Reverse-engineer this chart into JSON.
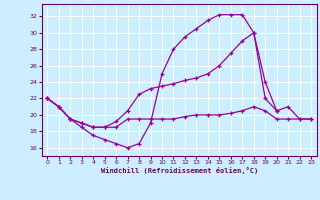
{
  "xlabel": "Windchill (Refroidissement éolien,°C)",
  "background_color": "#cceeff",
  "line_color": "#990099",
  "grid_color": "#ffffff",
  "axis_color": "#660066",
  "xlim": [
    -0.5,
    23.5
  ],
  "ylim": [
    15.0,
    33.5
  ],
  "xticks": [
    0,
    1,
    2,
    3,
    4,
    5,
    6,
    7,
    8,
    9,
    10,
    11,
    12,
    13,
    14,
    15,
    16,
    17,
    18,
    19,
    20,
    21,
    22,
    23
  ],
  "yticks": [
    16,
    18,
    20,
    22,
    24,
    26,
    28,
    30,
    32
  ],
  "curve1_x": [
    0,
    1,
    2,
    3,
    4,
    5,
    6,
    7,
    8,
    9,
    10,
    11,
    12,
    13,
    14,
    15,
    16,
    17,
    18,
    19,
    20
  ],
  "curve1_y": [
    22,
    21,
    19.5,
    18.5,
    17.5,
    17.0,
    16.5,
    16.0,
    16.5,
    19.0,
    25.0,
    28.0,
    29.5,
    30.5,
    31.5,
    32.2,
    32.2,
    32.2,
    30.0,
    22.0,
    20.5
  ],
  "curve2_x": [
    0,
    1,
    2,
    3,
    4,
    5,
    6,
    7,
    8,
    9,
    10,
    11,
    12,
    13,
    14,
    15,
    16,
    17,
    18,
    19,
    20,
    21,
    22,
    23
  ],
  "curve2_y": [
    22,
    21,
    19.5,
    19.0,
    18.5,
    18.5,
    19.2,
    20.5,
    22.5,
    23.2,
    23.5,
    23.8,
    24.2,
    24.5,
    25.0,
    26.0,
    27.5,
    29.0,
    30.0,
    24.0,
    20.5,
    21.0,
    19.5,
    19.5
  ],
  "curve3_x": [
    0,
    1,
    2,
    3,
    4,
    5,
    6,
    7,
    8,
    9,
    10,
    11,
    12,
    13,
    14,
    15,
    16,
    17,
    18,
    19,
    20,
    21,
    22,
    23
  ],
  "curve3_y": [
    22,
    21,
    19.5,
    19.0,
    18.5,
    18.5,
    18.5,
    19.5,
    19.5,
    19.5,
    19.5,
    19.5,
    19.8,
    20.0,
    20.0,
    20.0,
    20.2,
    20.5,
    21.0,
    20.5,
    19.5,
    19.5,
    19.5,
    19.5
  ]
}
